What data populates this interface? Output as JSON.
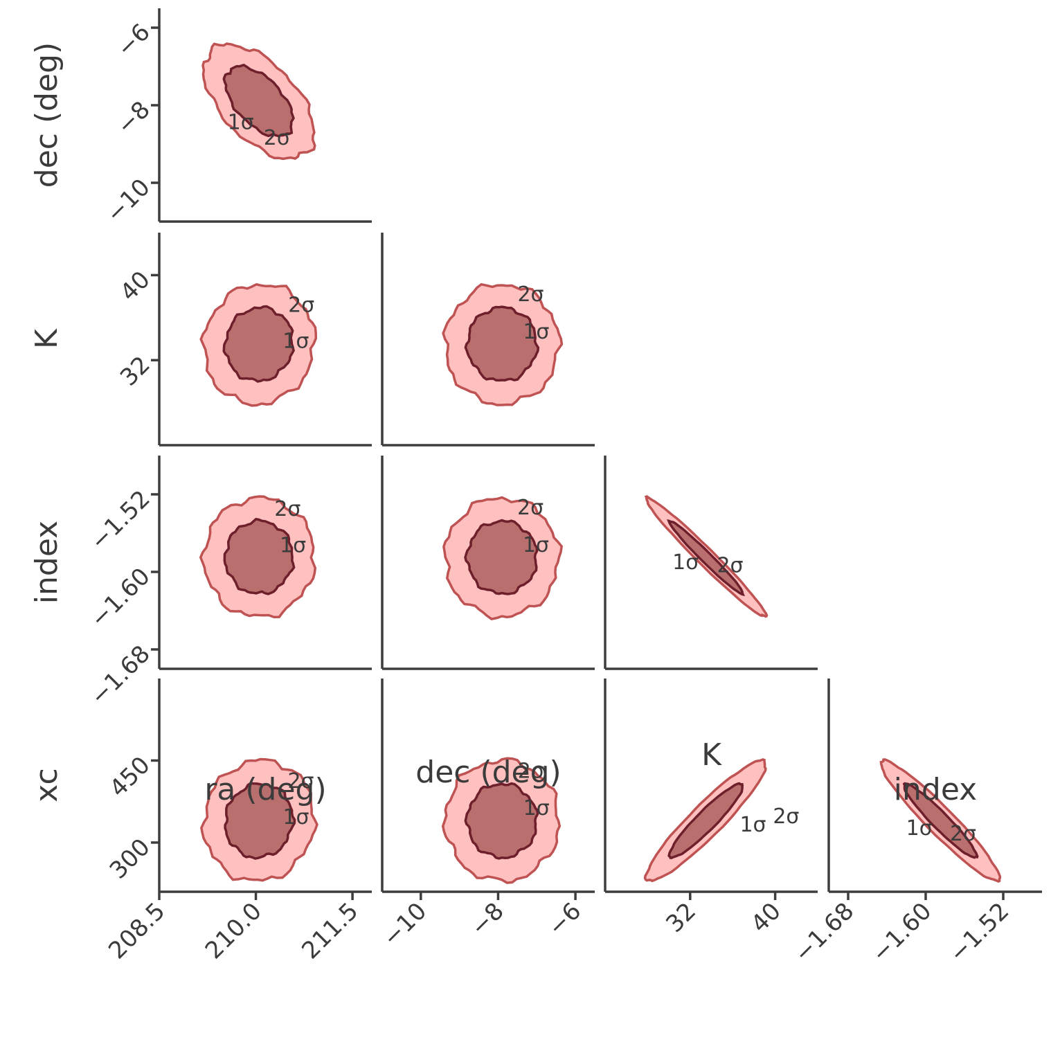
{
  "colors": {
    "outer_fill": "#ff8c8c",
    "inner_fill": "#a35454",
    "axis": "#3d3d3d"
  },
  "chart_data": {
    "type": "corner",
    "parameters": [
      {
        "name": "ra (deg)",
        "range": [
          208.5,
          211.8
        ],
        "ticks": [
          "208.5",
          "210.0",
          "211.5"
        ],
        "median": 210.05,
        "sd": 0.35
      },
      {
        "name": "dec (deg)",
        "range": [
          -11.0,
          -5.5
        ],
        "ticks": [
          "−10",
          "−8",
          "−6"
        ],
        "median": -7.9,
        "sd": 0.6
      },
      {
        "name": "K",
        "range": [
          24.0,
          44.0
        ],
        "ticks": [
          "32",
          "40"
        ],
        "median": 33.5,
        "sd": 2.3
      },
      {
        "name": "index",
        "range": [
          -1.7,
          -1.48
        ],
        "ticks": [
          "−1.68",
          "−1.60",
          "−1.52"
        ],
        "median": -1.585,
        "sd": 0.025
      },
      {
        "name": "xc",
        "range": [
          210,
          600
        ],
        "ticks": [
          "300",
          "450"
        ],
        "median": 340,
        "sd": 45
      }
    ],
    "pairs": [
      {
        "x": "ra (deg)",
        "y": "dec (deg)",
        "correlation": -0.55,
        "labels": [
          "1σ",
          "2σ"
        ]
      },
      {
        "x": "ra (deg)",
        "y": "K",
        "correlation": 0.05,
        "labels": [
          "1σ",
          "2σ"
        ]
      },
      {
        "x": "dec (deg)",
        "y": "K",
        "correlation": 0.0,
        "labels": [
          "1σ",
          "2σ"
        ]
      },
      {
        "x": "K",
        "y": "index",
        "correlation": -0.98,
        "labels": [
          "1σ",
          "2σ"
        ]
      },
      {
        "x": "ra (deg)",
        "y": "index",
        "correlation": 0.0,
        "labels": [
          "1σ",
          "2σ"
        ]
      },
      {
        "x": "dec (deg)",
        "y": "index",
        "correlation": 0.0,
        "labels": [
          "1σ",
          "2σ"
        ]
      },
      {
        "x": "ra (deg)",
        "y": "xc",
        "correlation": 0.05,
        "labels": [
          "1σ",
          "2σ"
        ]
      },
      {
        "x": "dec (deg)",
        "y": "xc",
        "correlation": 0.0,
        "labels": [
          "1σ",
          "2σ"
        ]
      },
      {
        "x": "K",
        "y": "xc",
        "correlation": 0.93,
        "labels": [
          "1σ",
          "2σ"
        ]
      },
      {
        "x": "index",
        "y": "xc",
        "correlation": -0.95,
        "labels": [
          "1σ",
          "2σ"
        ]
      }
    ],
    "grid": false,
    "legend": "none"
  }
}
